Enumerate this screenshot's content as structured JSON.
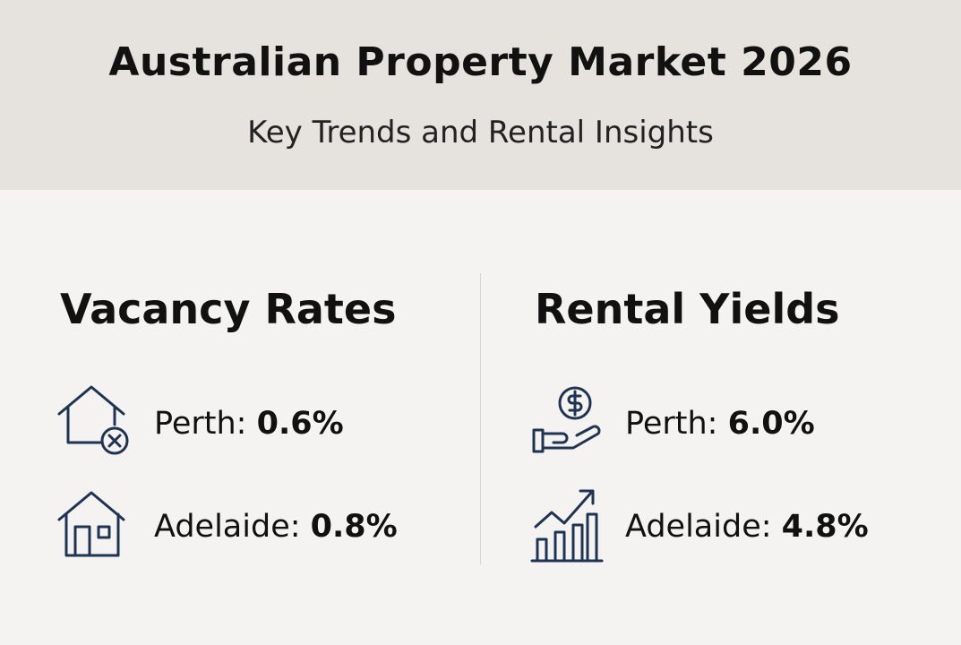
{
  "header": {
    "title": "Australian Property Market 2026",
    "subtitle": "Key Trends and Rental Insights"
  },
  "sections": [
    {
      "heading": "Vacancy Rates",
      "items": [
        {
          "label": "Perth:",
          "value": "0.6%"
        },
        {
          "label": "Adelaide:",
          "value": "0.8%"
        }
      ]
    },
    {
      "heading": "Rental Yields",
      "items": [
        {
          "label": "Perth:",
          "value": "6.0%"
        },
        {
          "label": "Adelaide:",
          "value": "4.8%"
        }
      ]
    }
  ]
}
